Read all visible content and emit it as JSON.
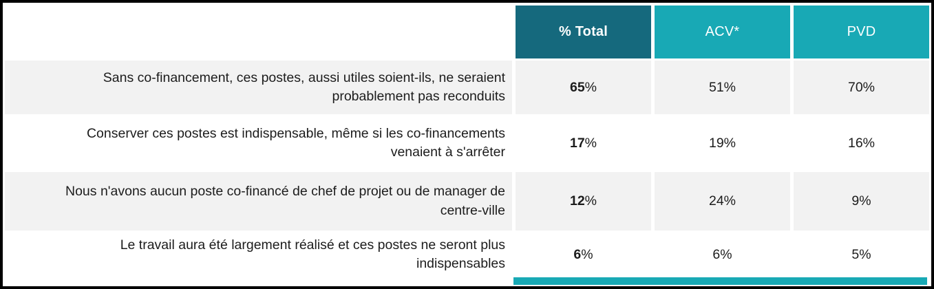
{
  "colors": {
    "header_total_bg": "#15697d",
    "header_sub_bg": "#18a9b5",
    "row_shade_bg": "#f2f2f2",
    "frame_border": "#000000",
    "header_text": "#ffffff",
    "body_text": "#1c1c1c",
    "bottom_accent": "#18a9b5"
  },
  "table": {
    "columns": [
      {
        "label": "% Total"
      },
      {
        "label": "ACV*"
      },
      {
        "label": "PVD"
      }
    ],
    "rows": [
      {
        "label": "Sans co-financement, ces postes, aussi utiles soient-ils, ne seraient probablement pas reconduits",
        "total": {
          "num": "65",
          "sign": "%"
        },
        "acv": "51%",
        "pvd": "70%"
      },
      {
        "label": "Conserver ces postes est indispensable, même si les co-financements venaient à s'arrêter",
        "total": {
          "num": "17",
          "sign": "%"
        },
        "acv": "19%",
        "pvd": "16%"
      },
      {
        "label": "Nous n'avons aucun poste co-financé de chef de projet ou de manager de centre-ville",
        "total": {
          "num": "12",
          "sign": "%"
        },
        "acv": "24%",
        "pvd": "9%"
      },
      {
        "label": "Le travail aura été largement réalisé et ces postes ne seront plus indispensables",
        "total": {
          "num": "6",
          "sign": "%"
        },
        "acv": "6%",
        "pvd": "5%"
      }
    ]
  },
  "chart_data": {
    "type": "table",
    "title": "",
    "categories": [
      "Sans co-financement, ces postes, aussi utiles soient-ils, ne seraient probablement pas reconduits",
      "Conserver ces postes est indispensable, même si les co-financements venaient à s'arrêter",
      "Nous n'avons aucun poste co-financé de chef de projet ou de manager de centre-ville",
      "Le travail aura été largement réalisé et ces postes ne seront plus indispensables"
    ],
    "series": [
      {
        "name": "% Total",
        "values": [
          65,
          17,
          12,
          6
        ]
      },
      {
        "name": "ACV*",
        "values": [
          51,
          19,
          24,
          6
        ]
      },
      {
        "name": "PVD",
        "values": [
          70,
          16,
          9,
          5
        ]
      }
    ],
    "unit": "%"
  }
}
